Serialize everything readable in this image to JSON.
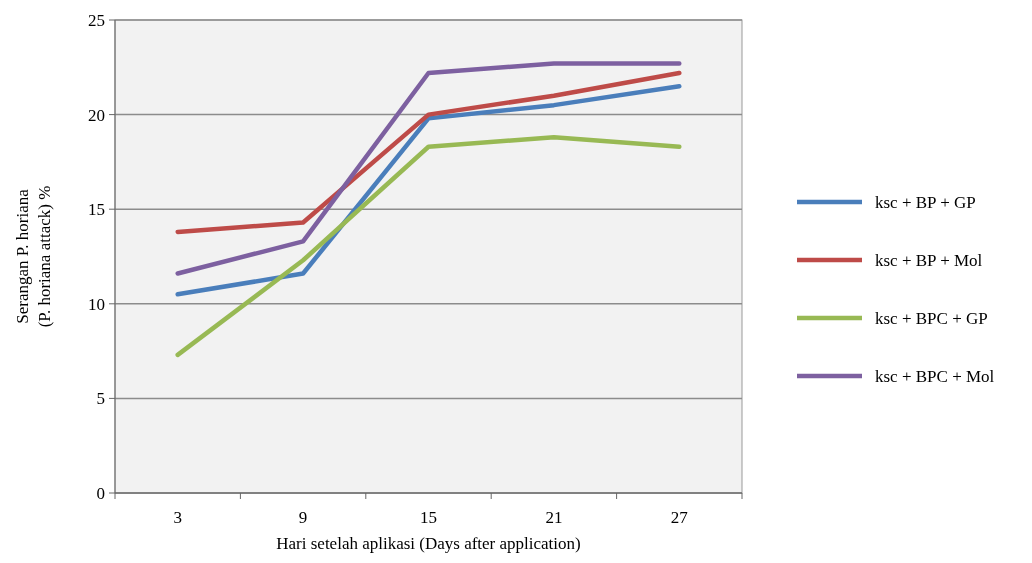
{
  "chart_data": {
    "type": "line",
    "xlabel": "Hari setelah aplikasi (Days after application)",
    "ylabel": "Serangan P. horiana\n(P. horiana attack) %",
    "categories": [
      "3",
      "9",
      "15",
      "21",
      "27"
    ],
    "series": [
      {
        "name": "ksc + BP + GP",
        "color": "#4a7ebb",
        "values": [
          10.5,
          11.6,
          19.8,
          20.5,
          21.5
        ]
      },
      {
        "name": "ksc + BP + Mol",
        "color": "#be4b48",
        "values": [
          13.8,
          14.3,
          20.0,
          21.0,
          22.2
        ]
      },
      {
        "name": "ksc + BPC + GP",
        "color": "#98b954",
        "values": [
          7.3,
          12.3,
          18.3,
          18.8,
          18.3
        ]
      },
      {
        "name": "ksc + BPC + Mol",
        "color": "#7d60a0",
        "values": [
          11.6,
          13.3,
          22.2,
          22.7,
          22.7
        ]
      }
    ],
    "ylim": [
      0,
      25
    ],
    "yticks": [
      0,
      5,
      10,
      15,
      20,
      25
    ],
    "grid": "y",
    "legend": "right",
    "marker": "none",
    "line_style": "solid"
  }
}
